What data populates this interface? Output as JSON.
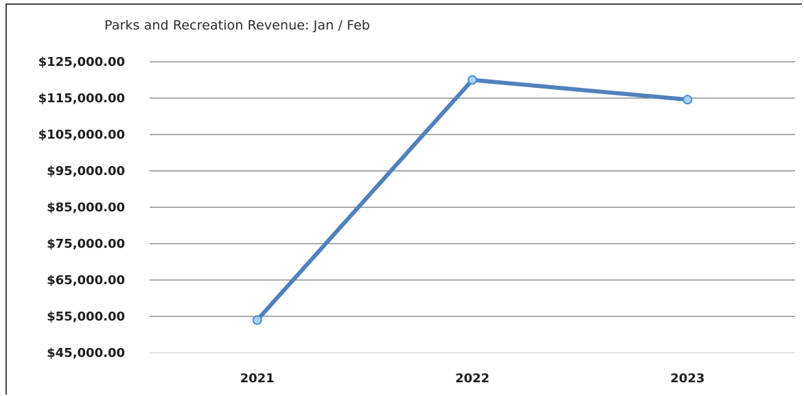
{
  "chart_data": {
    "type": "line",
    "title": "Parks and Recreation Revenue: Jan  / Feb",
    "xlabel": "",
    "ylabel": "",
    "categories": [
      "2021",
      "2022",
      "2023"
    ],
    "series": [
      {
        "values": [
          54000,
          120000,
          114600
        ]
      }
    ],
    "ylim": [
      45000,
      125000
    ],
    "yticks": [
      45000,
      55000,
      65000,
      75000,
      85000,
      95000,
      105000,
      115000,
      125000
    ],
    "ytick_labels": [
      "$45,000.00",
      "$55,000.00",
      "$65,000.00",
      "$75,000.00",
      "$85,000.00",
      "$95,000.00",
      "$105,000.00",
      "$115,000.00",
      "$125,000.00"
    ],
    "grid": "horizontal",
    "legend": "none",
    "colors": {
      "line": "#4f81bd",
      "marker_fill": "#a9d4f5",
      "marker_stroke": "#4a90d9",
      "grid": "#777777",
      "text": "#1e1e1e"
    }
  }
}
